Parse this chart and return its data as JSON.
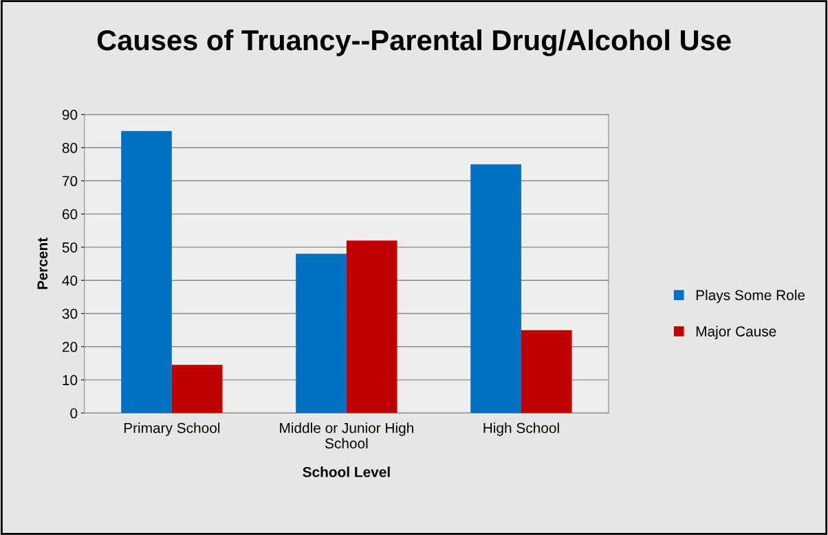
{
  "chart_data": {
    "type": "bar",
    "title": "Causes of Truancy--Parental Drug/Alcohol Use",
    "xlabel": "School Level",
    "ylabel": "Percent",
    "categories": [
      "Primary School",
      "Middle or Junior High\nSchool",
      "High School"
    ],
    "series": [
      {
        "name": "Plays Some Role",
        "color": "#0070c0",
        "values": [
          85,
          48,
          75
        ]
      },
      {
        "name": "Major Cause",
        "color": "#c00000",
        "values": [
          14.5,
          52,
          25
        ]
      }
    ],
    "ylim": [
      0,
      90
    ],
    "yticks": [
      0,
      10,
      20,
      30,
      40,
      50,
      60,
      70,
      80,
      90
    ],
    "grid": "y",
    "legend": "right"
  }
}
